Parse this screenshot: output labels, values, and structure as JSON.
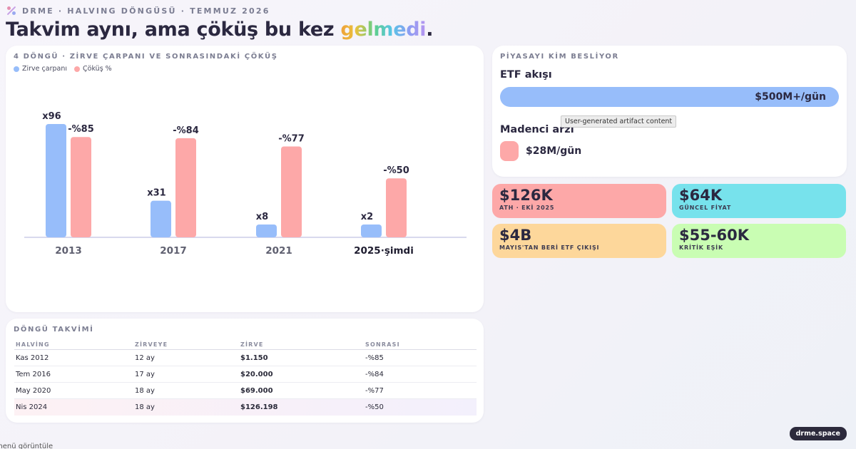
{
  "header": {
    "eyebrow": "DRME · HALVING DÖNGÜSÜ · TEMMUZ 2026",
    "headline_prefix": "Takvim aynı, ama çöküş bu kez ",
    "headline_highlight": "gelmedi",
    "headline_suffix": "."
  },
  "chart_card": {
    "title": "4 DÖNGÜ · ZİRVE ÇARPANI VE SONRASINDAKİ ÇÖKÜŞ"
  },
  "chart_data": {
    "type": "bar",
    "categories": [
      "2013",
      "2017",
      "2021",
      "2025·şimdi"
    ],
    "series": [
      {
        "name": "Zirve çarpanı",
        "values": [
          96,
          31,
          8,
          2
        ],
        "labels": [
          "x96",
          "x31",
          "x8",
          "x2"
        ],
        "color": "#97bdfa"
      },
      {
        "name": "Çöküş %",
        "values": [
          85,
          84,
          77,
          50
        ],
        "labels": [
          "-%85",
          "-%84",
          "-%77",
          "-%50"
        ],
        "color": "#fda8a8"
      }
    ],
    "title": "4 DÖNGÜ · ZİRVE ÇARPANI VE SONRASINDAKİ ÇÖKÜŞ",
    "xlabel": "",
    "ylabel": "",
    "legend": "top-left",
    "grid": false,
    "highlight_category": "2025·şimdi"
  },
  "table": {
    "title": "DÖNGÜ TAKVİMİ",
    "headers": [
      "HALVİNG",
      "ZİRVEYE",
      "ZİRVE",
      "SONRASI"
    ],
    "rows": [
      [
        "Kas 2012",
        "12 ay",
        "$1.150",
        "-%85"
      ],
      [
        "Tem 2016",
        "17 ay",
        "$20.000",
        "-%84"
      ],
      [
        "May 2020",
        "18 ay",
        "$69.000",
        "-%77"
      ],
      [
        "Nis 2024",
        "18 ay",
        "$126.198",
        "-%50"
      ]
    ]
  },
  "market": {
    "title": "PİYASAYI KİM BESLİYOR",
    "etf_label": "ETF akışı",
    "etf_value": "$500M+/gün",
    "miner_label": "Madenci arzı",
    "miner_value": "$28M/gün",
    "tooltip": "User-generated artifact content"
  },
  "stats": [
    {
      "value": "$126K",
      "label": "ATH · EKİ 2025",
      "color": "#fda8a8"
    },
    {
      "value": "$64K",
      "label": "GÜNCEL FİYAT",
      "color": "#77e2ec"
    },
    {
      "value": "$4B",
      "label": "MAYIS'TAN BERİ ETF ÇIKIŞI",
      "color": "#fdd79b"
    },
    {
      "value": "$55-60K",
      "label": "KRİTİK EŞİK",
      "color": "#c9fdb3"
    }
  ],
  "footer": {
    "badge": "drme.space",
    "bottom_text": "menü görüntüle"
  },
  "colors": {
    "blue": "#97bdfa",
    "pink": "#fda8a8"
  }
}
